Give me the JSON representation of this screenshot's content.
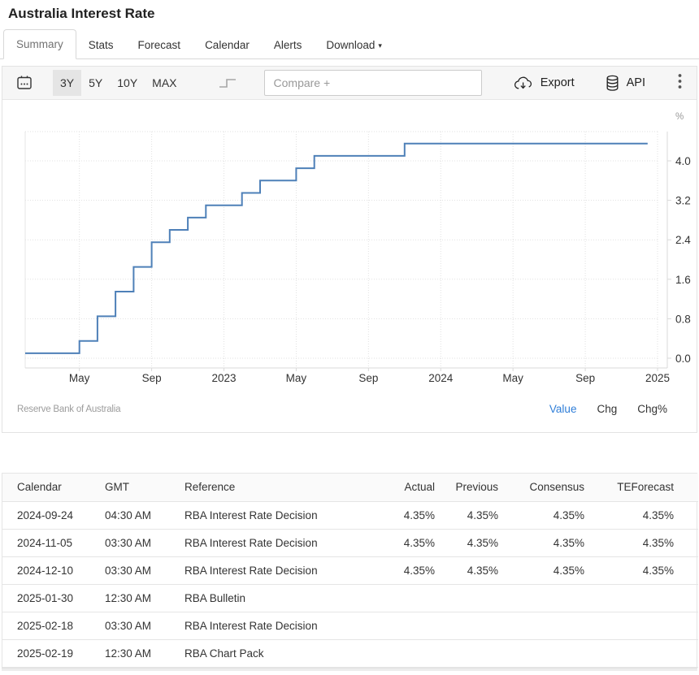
{
  "page": {
    "title": "Australia Interest Rate"
  },
  "tabs": [
    {
      "label": "Summary",
      "active": true
    },
    {
      "label": "Stats",
      "active": false
    },
    {
      "label": "Forecast",
      "active": false
    },
    {
      "label": "Calendar",
      "active": false
    },
    {
      "label": "Alerts",
      "active": false
    },
    {
      "label": "Download",
      "active": false,
      "caret": "▾"
    }
  ],
  "toolbar": {
    "ranges": [
      "3Y",
      "5Y",
      "10Y",
      "MAX"
    ],
    "active_range": "3Y",
    "compare_placeholder": "Compare +",
    "export_label": "Export",
    "api_label": "API"
  },
  "icons": {
    "calendar": "calendar-grid-with-dots",
    "step_line": "staircase-step-line",
    "export": "cloud-with-down-arrow",
    "api": "database-cylinder",
    "menu": "vertical-kebab-dots",
    "download_caret": "caret-down"
  },
  "chart_data": {
    "type": "line",
    "step": true,
    "title": "",
    "y_unit": "%",
    "ylim": [
      0,
      4.8
    ],
    "grid": true,
    "line_color": "#4e80b8",
    "series": [
      {
        "name": "Australia Interest Rate",
        "points": [
          [
            "2022-02",
            0.1
          ],
          [
            "2022-05",
            0.35
          ],
          [
            "2022-06",
            0.85
          ],
          [
            "2022-07",
            1.35
          ],
          [
            "2022-08",
            1.85
          ],
          [
            "2022-09",
            2.35
          ],
          [
            "2022-10",
            2.6
          ],
          [
            "2022-11",
            2.85
          ],
          [
            "2022-12",
            3.1
          ],
          [
            "2023-02",
            3.35
          ],
          [
            "2023-03",
            3.6
          ],
          [
            "2023-05",
            3.85
          ],
          [
            "2023-06",
            4.1
          ],
          [
            "2023-11",
            4.35
          ],
          [
            "2024-12",
            4.35
          ]
        ]
      }
    ],
    "x_ticks": [
      {
        "label": "May",
        "date": "2022-05"
      },
      {
        "label": "Sep",
        "date": "2022-09"
      },
      {
        "label": "2023",
        "date": "2023-01"
      },
      {
        "label": "May",
        "date": "2023-05"
      },
      {
        "label": "Sep",
        "date": "2023-09"
      },
      {
        "label": "2024",
        "date": "2024-01"
      },
      {
        "label": "May",
        "date": "2024-05"
      },
      {
        "label": "Sep",
        "date": "2024-09"
      },
      {
        "label": "2025",
        "date": "2025-01"
      }
    ],
    "y_ticks": [
      0.0,
      0.8,
      1.6,
      2.4,
      3.2,
      4.0
    ]
  },
  "chart_footer": {
    "source": "Reserve Bank of Australia",
    "links": [
      {
        "label": "Value",
        "active": true
      },
      {
        "label": "Chg",
        "active": false
      },
      {
        "label": "Chg%",
        "active": false
      }
    ]
  },
  "table": {
    "columns": [
      {
        "label": "Calendar",
        "align": "left"
      },
      {
        "label": "GMT",
        "align": "left"
      },
      {
        "label": "Reference",
        "align": "left"
      },
      {
        "label": "Actual",
        "align": "right"
      },
      {
        "label": "Previous",
        "align": "right"
      },
      {
        "label": "Consensus",
        "align": "right"
      },
      {
        "label": "TEForecast",
        "align": "right"
      }
    ],
    "rows": [
      [
        "2024-09-24",
        "04:30 AM",
        "RBA Interest Rate Decision",
        "4.35%",
        "4.35%",
        "4.35%",
        "4.35%"
      ],
      [
        "2024-11-05",
        "03:30 AM",
        "RBA Interest Rate Decision",
        "4.35%",
        "4.35%",
        "4.35%",
        "4.35%"
      ],
      [
        "2024-12-10",
        "03:30 AM",
        "RBA Interest Rate Decision",
        "4.35%",
        "4.35%",
        "4.35%",
        "4.35%"
      ],
      [
        "2025-01-30",
        "12:30 AM",
        "RBA Bulletin",
        "",
        "",
        "",
        ""
      ],
      [
        "2025-02-18",
        "03:30 AM",
        "RBA Interest Rate Decision",
        "",
        "",
        "",
        ""
      ],
      [
        "2025-02-19",
        "12:30 AM",
        "RBA Chart Pack",
        "",
        "",
        "",
        ""
      ]
    ]
  }
}
